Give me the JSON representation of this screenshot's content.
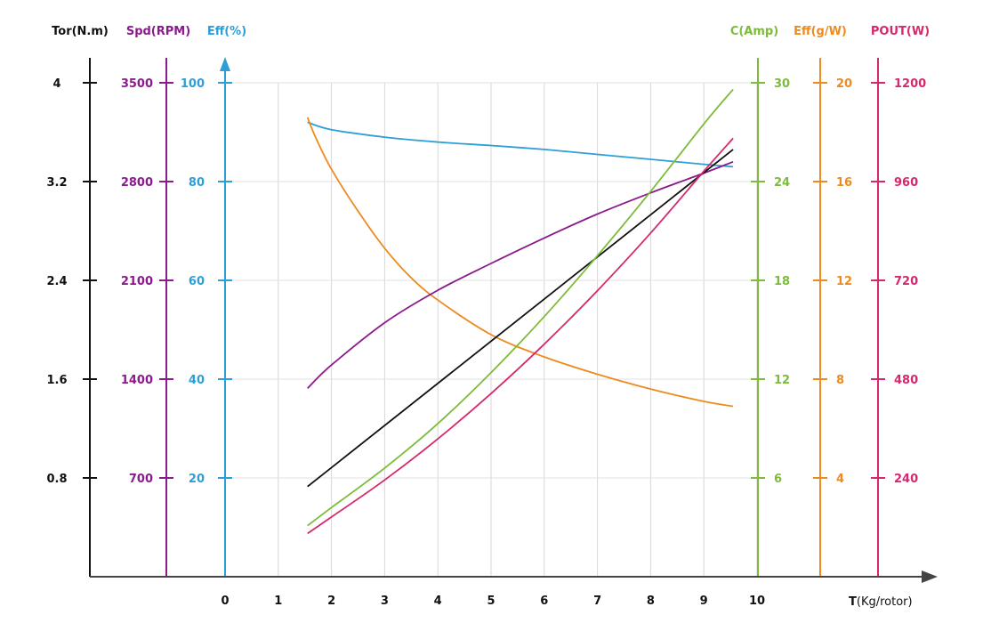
{
  "chart_data": {
    "type": "line",
    "x_axis": {
      "title_bold": "T",
      "title_rest": "(Kg/rotor)",
      "ticks": [
        "0",
        "1",
        "2",
        "3",
        "4",
        "5",
        "6",
        "7",
        "8",
        "9",
        "10"
      ],
      "range": [
        0,
        10
      ]
    },
    "y_axes": [
      {
        "id": "tor",
        "title": "Tor(N.m)",
        "color": "#111111",
        "range": [
          0,
          4
        ],
        "ticks": [
          "0.8",
          "1.6",
          "2.4",
          "3.2",
          "4"
        ],
        "tick_values": [
          0.8,
          1.6,
          2.4,
          3.2,
          4
        ]
      },
      {
        "id": "spd",
        "title": "Spd(RPM)",
        "color": "#8B1A8C",
        "range": [
          0,
          3500
        ],
        "ticks": [
          "700",
          "1400",
          "2100",
          "2800",
          "3500"
        ],
        "tick_values": [
          700,
          1400,
          2100,
          2800,
          3500
        ]
      },
      {
        "id": "eff",
        "title": "Eff(%)",
        "color": "#2E9FD6",
        "range": [
          0,
          100
        ],
        "ticks": [
          "20",
          "40",
          "60",
          "80",
          "100"
        ],
        "tick_values": [
          20,
          40,
          60,
          80,
          100
        ]
      },
      {
        "id": "cur",
        "title": "C(Amp)",
        "color": "#7DBB3A",
        "range": [
          0,
          30
        ],
        "ticks": [
          "6",
          "12",
          "18",
          "24",
          "30"
        ],
        "tick_values": [
          6,
          12,
          18,
          24,
          30
        ]
      },
      {
        "id": "effgw",
        "title": "Eff(g/W)",
        "color": "#EE8A1E",
        "range": [
          0,
          20
        ],
        "ticks": [
          "4",
          "8",
          "12",
          "16",
          "20"
        ],
        "tick_values": [
          4,
          8,
          12,
          16,
          20
        ]
      },
      {
        "id": "pout",
        "title": "POUT(W)",
        "color": "#D6286E",
        "range": [
          0,
          1200
        ],
        "ticks": [
          "240",
          "480",
          "720",
          "960",
          "1200"
        ],
        "tick_values": [
          240,
          480,
          720,
          960,
          1200
        ]
      }
    ],
    "grid": true,
    "series": [
      {
        "axis": "eff",
        "color": "#2E9FD6",
        "x": [
          1.55,
          2,
          3,
          4,
          5,
          6,
          7,
          8,
          9,
          9.55
        ],
        "y": [
          92,
          90.5,
          89,
          88,
          87.3,
          86.5,
          85.5,
          84.5,
          83.5,
          83
        ]
      },
      {
        "axis": "effgw",
        "color": "#EE8A1E",
        "x": [
          1.55,
          1.7,
          2,
          2.5,
          3,
          3.5,
          4,
          5,
          6,
          7,
          8,
          9,
          9.55
        ],
        "y": [
          18.6,
          17.8,
          16.5,
          14.8,
          13.3,
          12.1,
          11.2,
          9.8,
          8.9,
          8.2,
          7.6,
          7.1,
          6.9
        ]
      },
      {
        "axis": "spd",
        "color": "#8B1A8C",
        "x": [
          1.55,
          2,
          3,
          4,
          5,
          6,
          7,
          8,
          9,
          9.55
        ],
        "y": [
          1335,
          1500,
          1800,
          2030,
          2220,
          2400,
          2570,
          2720,
          2860,
          2940
        ]
      },
      {
        "axis": "tor",
        "color": "#111111",
        "x": [
          1.55,
          9.55
        ],
        "y": [
          0.73,
          3.46
        ]
      },
      {
        "axis": "cur",
        "color": "#7DBB3A",
        "x": [
          1.55,
          2,
          3,
          4,
          5,
          6,
          7,
          8,
          9,
          9.55
        ],
        "y": [
          3.1,
          4.2,
          6.6,
          9.3,
          12.4,
          15.8,
          19.5,
          23.4,
          27.5,
          29.6
        ]
      },
      {
        "axis": "pout",
        "color": "#D6286E",
        "x": [
          1.55,
          2,
          3,
          4,
          5,
          6,
          7,
          8,
          9,
          9.55
        ],
        "y": [
          105,
          145,
          235,
          335,
          445,
          565,
          695,
          835,
          985,
          1065
        ]
      }
    ]
  }
}
